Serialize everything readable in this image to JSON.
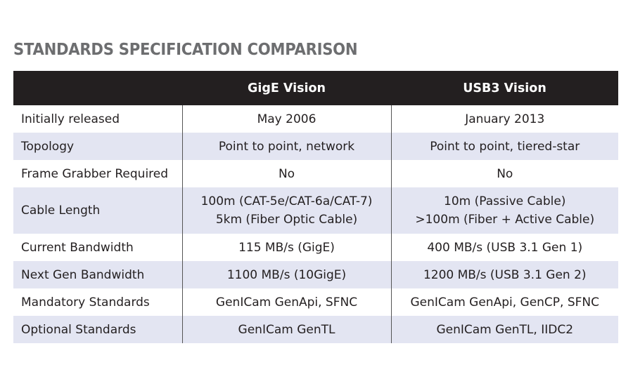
{
  "title": "STANDARDS SPECIFICATION COMPARISON",
  "table": {
    "header": [
      "GigE Vision",
      "USB3 Vision"
    ],
    "rows": [
      [
        "Initially released",
        [
          "May 2006"
        ],
        [
          "January 2013"
        ]
      ],
      [
        "Topology",
        [
          "Point to point, network"
        ],
        [
          "Point to point, tiered-star"
        ]
      ],
      [
        "Frame Grabber Required",
        [
          "No"
        ],
        [
          "No"
        ]
      ],
      [
        "Cable Length",
        [
          "100m (CAT-5e/CAT-6a/CAT-7)",
          "5km (Fiber Optic Cable)"
        ],
        [
          "10m (Passive Cable)",
          ">100m (Fiber + Active Cable)"
        ]
      ],
      [
        "Current Bandwidth",
        [
          "115 MB/s (GigE)"
        ],
        [
          "400 MB/s (USB 3.1 Gen 1)"
        ]
      ],
      [
        "Next Gen Bandwidth",
        [
          "1100 MB/s (10GigE)"
        ],
        [
          "1200 MB/s (USB 3.1 Gen 2)"
        ]
      ],
      [
        "Mandatory Standards",
        [
          "GenICam GenApi, SFNC"
        ],
        [
          "GenICam GenApi, GenCP, SFNC"
        ]
      ],
      [
        "Optional Standards",
        [
          "GenICam GenTL"
        ],
        [
          "GenICam GenTL, IIDC2"
        ]
      ]
    ]
  }
}
